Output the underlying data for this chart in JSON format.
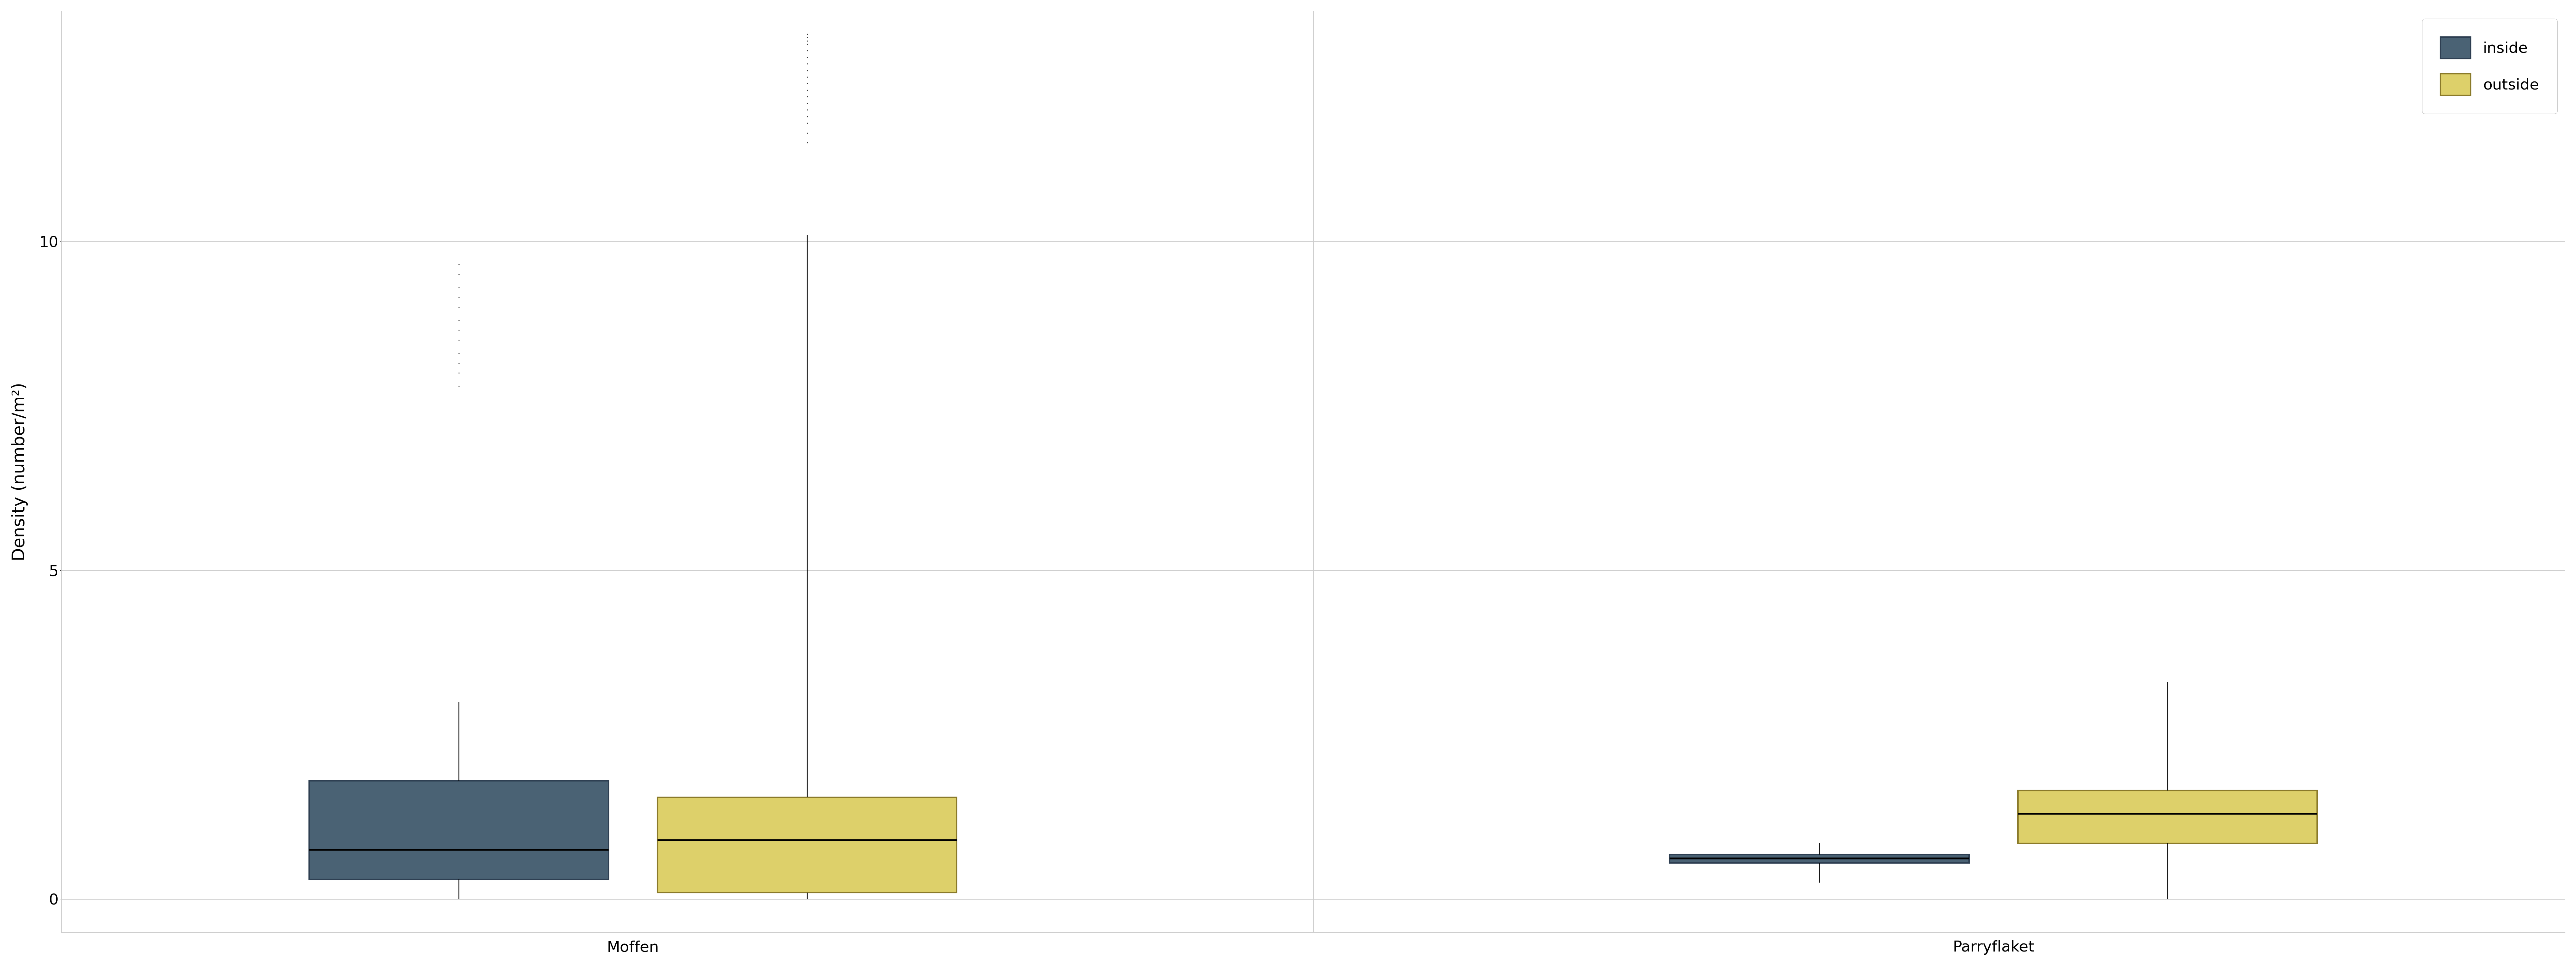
{
  "title": "",
  "ylabel": "Density (number/m²)",
  "xlabel": "",
  "groups": [
    "Moffen",
    "Parryflaket"
  ],
  "categories": [
    "inside",
    "outside"
  ],
  "colors": [
    "#4a6274",
    "#ddd06a"
  ],
  "edge_colors": [
    "#2e3f52",
    "#8a7a2a"
  ],
  "background_color": "#ffffff",
  "panel_color": "#ffffff",
  "grid_color": "#cccccc",
  "ylim": [
    -0.5,
    13.5
  ],
  "yticks": [
    0,
    5,
    10
  ],
  "figsize": [
    80,
    30
  ],
  "dpi": 100,
  "moffen_inside": {
    "q1": 0.3,
    "median": 0.75,
    "q3": 1.8,
    "whisker_low": 0.0,
    "whisker_high": 3.0,
    "outliers": [
      7.8,
      8.0,
      8.15,
      8.3,
      8.5,
      8.65,
      8.8,
      9.0,
      9.15,
      9.3,
      9.5,
      9.65
    ]
  },
  "moffen_outside": {
    "q1": 0.1,
    "median": 0.9,
    "q3": 1.55,
    "whisker_low": 0.0,
    "whisker_high": 10.1,
    "outliers": [
      11.5,
      11.65,
      11.8,
      11.9,
      12.0,
      12.1,
      12.2,
      12.3,
      12.4,
      12.5,
      12.6,
      12.7,
      12.8,
      12.9,
      13.0,
      13.05,
      13.1,
      13.15
    ]
  },
  "parryflaket_inside": {
    "q1": 0.55,
    "median": 0.62,
    "q3": 0.68,
    "whisker_low": 0.25,
    "whisker_high": 0.85,
    "outliers": []
  },
  "parryflaket_outside": {
    "q1": 0.85,
    "median": 1.3,
    "q3": 1.65,
    "whisker_low": 0.0,
    "whisker_high": 3.3,
    "outliers": []
  },
  "box_width": 0.55,
  "linewidth": 3.0,
  "median_linewidth": 4.0,
  "flier_size": 4,
  "legend_fontsize": 34,
  "tick_fontsize": 34,
  "label_fontsize": 38,
  "group_positions": [
    1.25,
    3.75
  ],
  "offsets": [
    -0.32,
    0.32
  ],
  "xlim": [
    0.2,
    4.8
  ]
}
